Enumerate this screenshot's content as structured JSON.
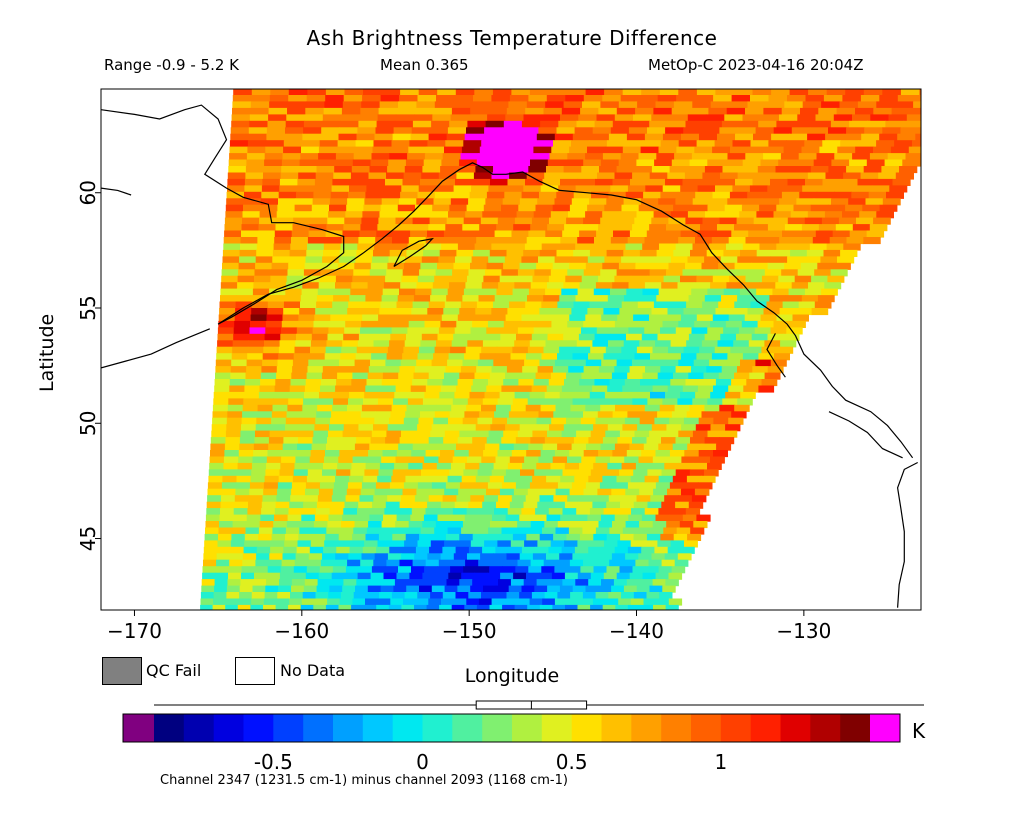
{
  "header": {
    "title": "Ash Brightness Temperature Difference",
    "range": "Range -0.9 - 5.2 K",
    "mean": "Mean 0.365",
    "satellite_time": "MetOp-C 2023-04-16 20:04Z"
  },
  "legend": {
    "qc_fail": "QC Fail",
    "no_data": "No Data",
    "qc_fail_color": "#808080",
    "no_data_color": "#ffffff"
  },
  "colorbar": {
    "unit": "K",
    "note": "Channel 2347 (1231.5 cm-1) minus channel 2093 (1168 cm-1)",
    "ticks": [
      {
        "value": -0.5,
        "label": "-0.5"
      },
      {
        "value": 0,
        "label": "0"
      },
      {
        "value": 0.5,
        "label": "0.5"
      },
      {
        "value": 1,
        "label": "1"
      }
    ],
    "min": -0.9,
    "max": 1.5,
    "under_color": "#800080",
    "over_color": "#ff00ff",
    "colors": [
      "#000080",
      "#0000b0",
      "#0000e0",
      "#0010ff",
      "#0040ff",
      "#0070ff",
      "#00a0ff",
      "#00c8ff",
      "#00e8f0",
      "#20f0d0",
      "#50f0a0",
      "#80f070",
      "#b0f040",
      "#e0f020",
      "#ffe000",
      "#ffc000",
      "#ffa000",
      "#ff8000",
      "#ff6000",
      "#ff4000",
      "#ff2000",
      "#e00000",
      "#b00000",
      "#800000"
    ],
    "mean_box": {
      "mean": 0.365,
      "low": 0.18,
      "high": 0.55
    }
  },
  "chart_data": {
    "type": "heatmap",
    "title": "Ash Brightness Temperature Difference",
    "xlabel": "Longitude",
    "ylabel": "Latitude",
    "xlim": [
      -172,
      -123
    ],
    "ylim": [
      41.9,
      64.5
    ],
    "xticks": [
      {
        "value": -170,
        "label": "−170"
      },
      {
        "value": -160,
        "label": "−160"
      },
      {
        "value": -150,
        "label": "−150"
      },
      {
        "value": -140,
        "label": "−140"
      },
      {
        "value": -130,
        "label": "−130"
      }
    ],
    "yticks": [
      {
        "value": 45,
        "label": "45"
      },
      {
        "value": 50,
        "label": "50"
      },
      {
        "value": 55,
        "label": "55"
      },
      {
        "value": 60,
        "label": "60"
      }
    ],
    "value_units": "K",
    "value_range": [
      -0.9,
      5.2
    ],
    "mean_value": 0.365,
    "swath": {
      "west_edge": [
        [
          -164.1,
          64.5
        ],
        [
          -166.1,
          41.9
        ]
      ],
      "east_edge": [
        [
          -122.7,
          64.2
        ],
        [
          -123.0,
          61.5
        ],
        [
          -127.0,
          57.5
        ],
        [
          -131.0,
          53.5
        ],
        [
          -135.0,
          49.0
        ],
        [
          -138.3,
          41.9
        ]
      ]
    },
    "features": [
      {
        "name": "ash-plume-core",
        "lon": -148.3,
        "lat": 62.0,
        "value": 5.2
      },
      {
        "name": "warm-patch-sw-alaska",
        "lon": -163.5,
        "lat": 54.3,
        "value": 1.3
      },
      {
        "name": "cold-region-south",
        "lon": -150.0,
        "lat": 43.5,
        "value": -0.7
      }
    ]
  }
}
